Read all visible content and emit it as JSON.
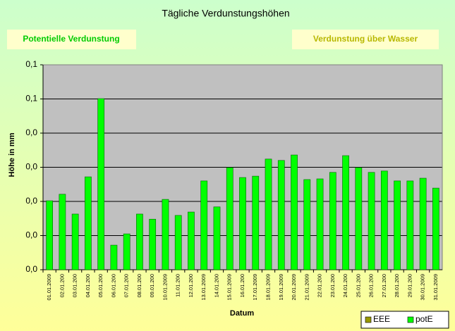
{
  "chart_data": {
    "type": "bar",
    "title": "Tägliche Verdunstungshöhen",
    "boxes": [
      "Potentielle Verdunstung",
      "Verdunstung über Wasser"
    ],
    "ylabel": "Höhe in mm",
    "xlabel": "Datum",
    "categories": [
      "01.01.2009",
      "02.01.200",
      "03.01.200",
      "04.01.200",
      "05.01.200",
      "06.01.200",
      "07.01.200",
      "08.01.200",
      "09.01.200",
      "10.01.2009",
      "11.01.200",
      "12.01.200",
      "13.01.2009",
      "14.01.200",
      "15.01.2009",
      "16.01.200",
      "17.01.2009",
      "18.01.2009",
      "19.01.2009",
      "20.01.2009",
      "21.01.2009",
      "22.01.200",
      "23.01.200",
      "24.01.200",
      "25.01.200",
      "26.01.200",
      "27.01.200",
      "28.01.200",
      "29.01.200",
      "30.01.2009",
      "31.01.2009"
    ],
    "series": [
      {
        "name": "EEE",
        "color": "#999900",
        "values": [
          null,
          null,
          null,
          null,
          null,
          null,
          null,
          null,
          null,
          null,
          null,
          null,
          null,
          null,
          null,
          null,
          null,
          null,
          null,
          null,
          null,
          null,
          null,
          null,
          null,
          null,
          null,
          null,
          null,
          null,
          null
        ]
      },
      {
        "name": "potE",
        "color": "#00ff00",
        "values": [
          0.0202,
          0.0221,
          0.0163,
          0.0272,
          0.0501,
          0.0072,
          0.0105,
          0.0163,
          0.0148,
          0.0206,
          0.0159,
          0.0169,
          0.026,
          0.0184,
          0.0299,
          0.027,
          0.0274,
          0.0324,
          0.032,
          0.0336,
          0.0264,
          0.0266,
          0.0285,
          0.0334,
          0.0299,
          0.0285,
          0.0289,
          0.026,
          0.026,
          0.0268,
          0.0239
        ]
      }
    ],
    "ylim": [
      0,
      0.06
    ],
    "yticks": [
      {
        "value": 0,
        "label": "0,0"
      },
      {
        "value": 0.01,
        "label": "0,0"
      },
      {
        "value": 0.02,
        "label": "0,0"
      },
      {
        "value": 0.03,
        "label": "0,0"
      },
      {
        "value": 0.04,
        "label": "0,0"
      },
      {
        "value": 0.05,
        "label": "0,1"
      },
      {
        "value": 0.06,
        "label": "0,1"
      }
    ],
    "grid": true,
    "legend": "bottom-right"
  }
}
